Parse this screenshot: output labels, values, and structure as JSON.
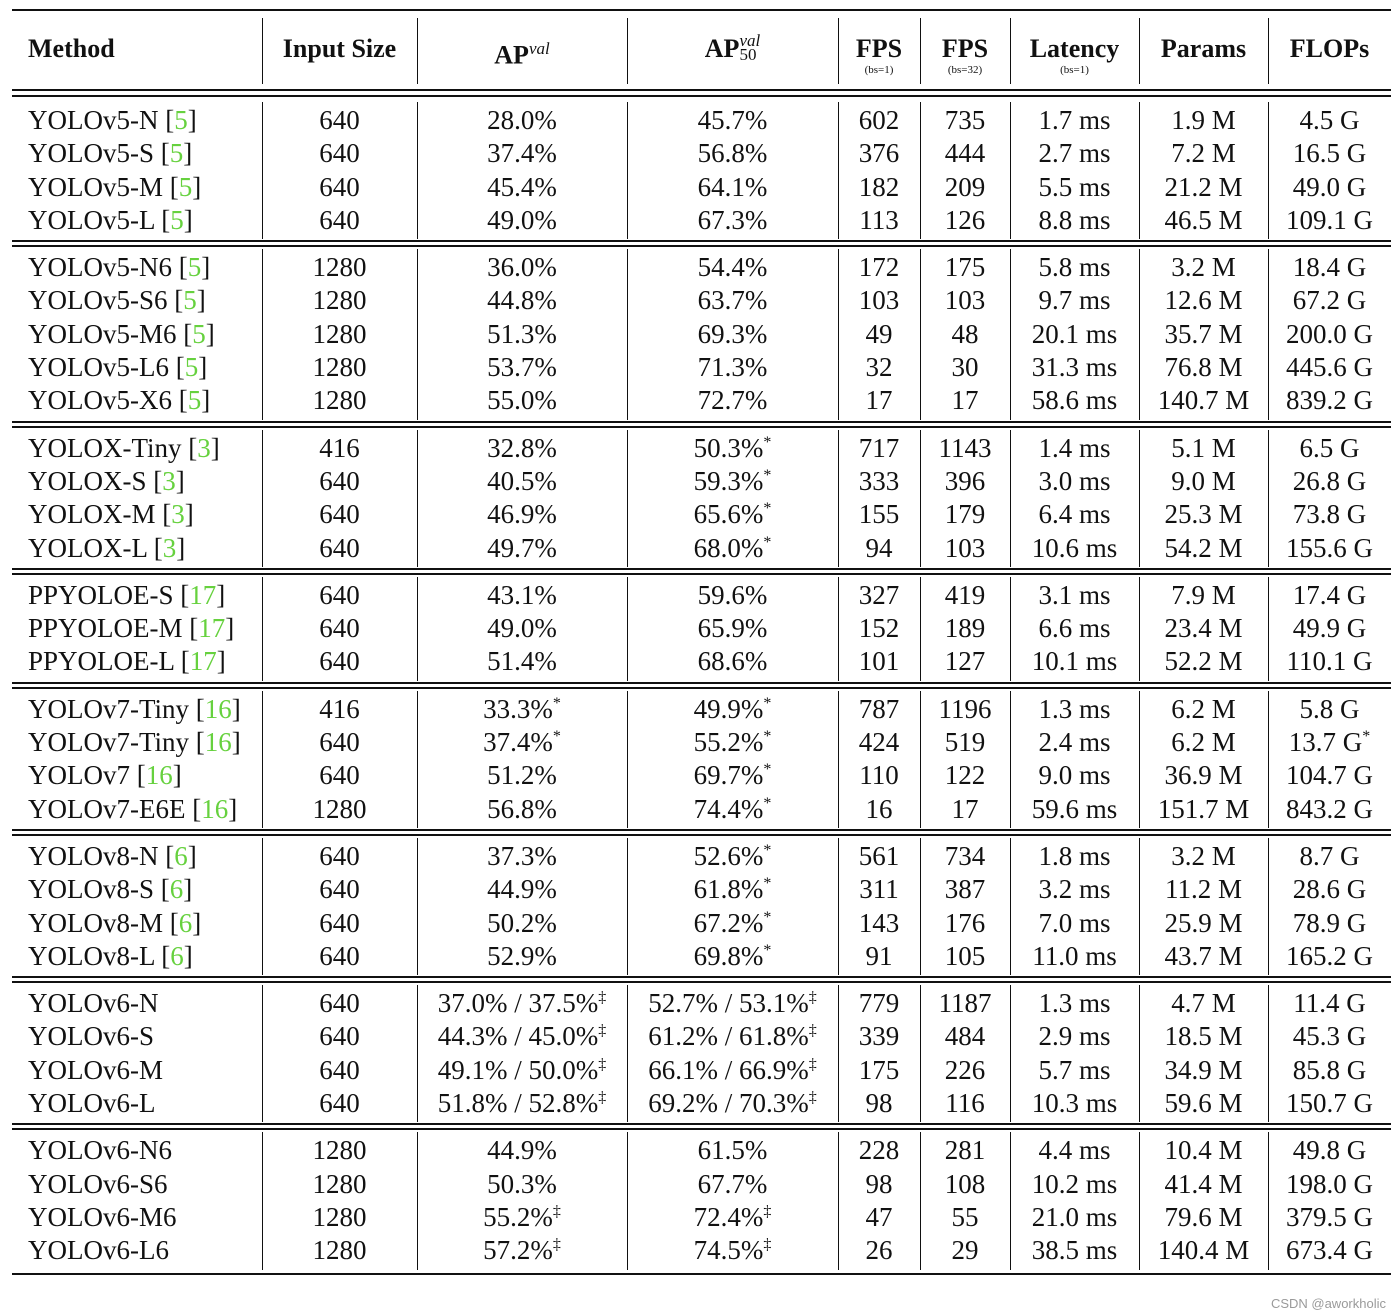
{
  "table": {
    "headers": [
      {
        "main": "Method",
        "sub": ""
      },
      {
        "main": "Input Size",
        "sub": ""
      },
      {
        "main": "AP",
        "sup": "val",
        "sub2": "",
        "sub": ""
      },
      {
        "main": "AP",
        "sup": "val",
        "sub2": "50",
        "sub": ""
      },
      {
        "main": "FPS",
        "sub": "(bs=1)"
      },
      {
        "main": "FPS",
        "sub": "(bs=32)"
      },
      {
        "main": "Latency",
        "sub": "(bs=1)"
      },
      {
        "main": "Params",
        "sub": ""
      },
      {
        "main": "FLOPs",
        "sub": ""
      }
    ],
    "groups": [
      [
        {
          "method": "YOLOv5-N",
          "ref": "5",
          "size": "640",
          "ap": "28.0%",
          "ap_mark": "",
          "ap50": "45.7%",
          "ap50_mark": "",
          "fps1": "602",
          "fps32": "735",
          "lat": "1.7 ms",
          "params": "1.9 M",
          "flops": "4.5 G",
          "flops_mark": ""
        },
        {
          "method": "YOLOv5-S",
          "ref": "5",
          "size": "640",
          "ap": "37.4%",
          "ap_mark": "",
          "ap50": "56.8%",
          "ap50_mark": "",
          "fps1": "376",
          "fps32": "444",
          "lat": "2.7 ms",
          "params": "7.2 M",
          "flops": "16.5 G",
          "flops_mark": ""
        },
        {
          "method": "YOLOv5-M",
          "ref": "5",
          "size": "640",
          "ap": "45.4%",
          "ap_mark": "",
          "ap50": "64.1%",
          "ap50_mark": "",
          "fps1": "182",
          "fps32": "209",
          "lat": "5.5 ms",
          "params": "21.2 M",
          "flops": "49.0 G",
          "flops_mark": ""
        },
        {
          "method": "YOLOv5-L",
          "ref": "5",
          "size": "640",
          "ap": "49.0%",
          "ap_mark": "",
          "ap50": "67.3%",
          "ap50_mark": "",
          "fps1": "113",
          "fps32": "126",
          "lat": "8.8 ms",
          "params": "46.5 M",
          "flops": "109.1 G",
          "flops_mark": ""
        }
      ],
      [
        {
          "method": "YOLOv5-N6",
          "ref": "5",
          "size": "1280",
          "ap": "36.0%",
          "ap_mark": "",
          "ap50": "54.4%",
          "ap50_mark": "",
          "fps1": "172",
          "fps32": "175",
          "lat": "5.8 ms",
          "params": "3.2 M",
          "flops": "18.4 G",
          "flops_mark": ""
        },
        {
          "method": "YOLOv5-S6",
          "ref": "5",
          "size": "1280",
          "ap": "44.8%",
          "ap_mark": "",
          "ap50": "63.7%",
          "ap50_mark": "",
          "fps1": "103",
          "fps32": "103",
          "lat": "9.7 ms",
          "params": "12.6 M",
          "flops": "67.2 G",
          "flops_mark": ""
        },
        {
          "method": "YOLOv5-M6",
          "ref": "5",
          "size": "1280",
          "ap": "51.3%",
          "ap_mark": "",
          "ap50": "69.3%",
          "ap50_mark": "",
          "fps1": "49",
          "fps32": "48",
          "lat": "20.1 ms",
          "params": "35.7 M",
          "flops": "200.0 G",
          "flops_mark": ""
        },
        {
          "method": "YOLOv5-L6",
          "ref": "5",
          "size": "1280",
          "ap": "53.7%",
          "ap_mark": "",
          "ap50": "71.3%",
          "ap50_mark": "",
          "fps1": "32",
          "fps32": "30",
          "lat": "31.3 ms",
          "params": "76.8 M",
          "flops": "445.6 G",
          "flops_mark": ""
        },
        {
          "method": "YOLOv5-X6",
          "ref": "5",
          "size": "1280",
          "ap": "55.0%",
          "ap_mark": "",
          "ap50": "72.7%",
          "ap50_mark": "",
          "fps1": "17",
          "fps32": "17",
          "lat": "58.6 ms",
          "params": "140.7 M",
          "flops": "839.2 G",
          "flops_mark": ""
        }
      ],
      [
        {
          "method": "YOLOX-Tiny",
          "ref": "3",
          "size": "416",
          "ap": "32.8%",
          "ap_mark": "",
          "ap50": "50.3%",
          "ap50_mark": "*",
          "fps1": "717",
          "fps32": "1143",
          "lat": "1.4 ms",
          "params": "5.1 M",
          "flops": "6.5 G",
          "flops_mark": ""
        },
        {
          "method": "YOLOX-S",
          "ref": "3",
          "size": "640",
          "ap": "40.5%",
          "ap_mark": "",
          "ap50": "59.3%",
          "ap50_mark": "*",
          "fps1": "333",
          "fps32": "396",
          "lat": "3.0 ms",
          "params": "9.0 M",
          "flops": "26.8 G",
          "flops_mark": ""
        },
        {
          "method": "YOLOX-M",
          "ref": "3",
          "size": "640",
          "ap": "46.9%",
          "ap_mark": "",
          "ap50": "65.6%",
          "ap50_mark": "*",
          "fps1": "155",
          "fps32": "179",
          "lat": "6.4 ms",
          "params": "25.3 M",
          "flops": "73.8 G",
          "flops_mark": ""
        },
        {
          "method": "YOLOX-L",
          "ref": "3",
          "size": "640",
          "ap": "49.7%",
          "ap_mark": "",
          "ap50": "68.0%",
          "ap50_mark": "*",
          "fps1": "94",
          "fps32": "103",
          "lat": "10.6 ms",
          "params": "54.2 M",
          "flops": "155.6 G",
          "flops_mark": ""
        }
      ],
      [
        {
          "method": "PPYOLOE-S",
          "ref": "17",
          "size": "640",
          "ap": "43.1%",
          "ap_mark": "",
          "ap50": "59.6%",
          "ap50_mark": "",
          "fps1": "327",
          "fps32": "419",
          "lat": "3.1 ms",
          "params": "7.9 M",
          "flops": "17.4 G",
          "flops_mark": ""
        },
        {
          "method": "PPYOLOE-M",
          "ref": "17",
          "size": "640",
          "ap": "49.0%",
          "ap_mark": "",
          "ap50": "65.9%",
          "ap50_mark": "",
          "fps1": "152",
          "fps32": "189",
          "lat": "6.6 ms",
          "params": "23.4 M",
          "flops": "49.9 G",
          "flops_mark": ""
        },
        {
          "method": "PPYOLOE-L",
          "ref": "17",
          "size": "640",
          "ap": "51.4%",
          "ap_mark": "",
          "ap50": "68.6%",
          "ap50_mark": "",
          "fps1": "101",
          "fps32": "127",
          "lat": "10.1 ms",
          "params": "52.2 M",
          "flops": "110.1 G",
          "flops_mark": ""
        }
      ],
      [
        {
          "method": "YOLOv7-Tiny",
          "ref": "16",
          "size": "416",
          "ap": "33.3%",
          "ap_mark": "*",
          "ap50": "49.9%",
          "ap50_mark": "*",
          "fps1": "787",
          "fps32": "1196",
          "lat": "1.3 ms",
          "params": "6.2 M",
          "flops": "5.8 G",
          "flops_mark": ""
        },
        {
          "method": "YOLOv7-Tiny",
          "ref": "16",
          "size": "640",
          "ap": "37.4%",
          "ap_mark": "*",
          "ap50": "55.2%",
          "ap50_mark": "*",
          "fps1": "424",
          "fps32": "519",
          "lat": "2.4 ms",
          "params": "6.2 M",
          "flops": "13.7 G",
          "flops_mark": "*"
        },
        {
          "method": "YOLOv7",
          "ref": "16",
          "size": "640",
          "ap": "51.2%",
          "ap_mark": "",
          "ap50": "69.7%",
          "ap50_mark": "*",
          "fps1": "110",
          "fps32": "122",
          "lat": "9.0 ms",
          "params": "36.9 M",
          "flops": "104.7 G",
          "flops_mark": ""
        },
        {
          "method": "YOLOv7-E6E",
          "ref": "16",
          "size": "1280",
          "ap": "56.8%",
          "ap_mark": "",
          "ap50": "74.4%",
          "ap50_mark": "*",
          "fps1": "16",
          "fps32": "17",
          "lat": "59.6 ms",
          "params": "151.7 M",
          "flops": "843.2 G",
          "flops_mark": ""
        }
      ],
      [
        {
          "method": "YOLOv8-N",
          "ref": "6",
          "size": "640",
          "ap": "37.3%",
          "ap_mark": "",
          "ap50": "52.6%",
          "ap50_mark": "*",
          "fps1": "561",
          "fps32": "734",
          "lat": "1.8 ms",
          "params": "3.2 M",
          "flops": "8.7 G",
          "flops_mark": ""
        },
        {
          "method": "YOLOv8-S",
          "ref": "6",
          "size": "640",
          "ap": "44.9%",
          "ap_mark": "",
          "ap50": "61.8%",
          "ap50_mark": "*",
          "fps1": "311",
          "fps32": "387",
          "lat": "3.2 ms",
          "params": "11.2 M",
          "flops": "28.6 G",
          "flops_mark": ""
        },
        {
          "method": "YOLOv8-M",
          "ref": "6",
          "size": "640",
          "ap": "50.2%",
          "ap_mark": "",
          "ap50": "67.2%",
          "ap50_mark": "*",
          "fps1": "143",
          "fps32": "176",
          "lat": "7.0 ms",
          "params": "25.9 M",
          "flops": "78.9 G",
          "flops_mark": ""
        },
        {
          "method": "YOLOv8-L",
          "ref": "6",
          "size": "640",
          "ap": "52.9%",
          "ap_mark": "",
          "ap50": "69.8%",
          "ap50_mark": "*",
          "fps1": "91",
          "fps32": "105",
          "lat": "11.0 ms",
          "params": "43.7 M",
          "flops": "165.2 G",
          "flops_mark": ""
        }
      ],
      [
        {
          "method": "YOLOv6-N",
          "ref": "",
          "size": "640",
          "ap": "37.0% / 37.5%",
          "ap_mark": "‡",
          "ap50": "52.7% / 53.1%",
          "ap50_mark": "‡",
          "fps1": "779",
          "fps32": "1187",
          "lat": "1.3 ms",
          "params": "4.7 M",
          "flops": "11.4 G",
          "flops_mark": ""
        },
        {
          "method": "YOLOv6-S",
          "ref": "",
          "size": "640",
          "ap": "44.3% / 45.0%",
          "ap_mark": "‡",
          "ap50": "61.2% / 61.8%",
          "ap50_mark": "‡",
          "fps1": "339",
          "fps32": "484",
          "lat": "2.9 ms",
          "params": "18.5 M",
          "flops": "45.3 G",
          "flops_mark": ""
        },
        {
          "method": "YOLOv6-M",
          "ref": "",
          "size": "640",
          "ap": "49.1% / 50.0%",
          "ap_mark": "‡",
          "ap50": "66.1% / 66.9%",
          "ap50_mark": "‡",
          "fps1": "175",
          "fps32": "226",
          "lat": "5.7 ms",
          "params": "34.9 M",
          "flops": "85.8 G",
          "flops_mark": ""
        },
        {
          "method": "YOLOv6-L",
          "ref": "",
          "size": "640",
          "ap": "51.8% / 52.8%",
          "ap_mark": "‡",
          "ap50": "69.2% / 70.3%",
          "ap50_mark": "‡",
          "fps1": "98",
          "fps32": "116",
          "lat": "10.3 ms",
          "params": "59.6 M",
          "flops": "150.7 G",
          "flops_mark": ""
        }
      ],
      [
        {
          "method": "YOLOv6-N6",
          "ref": "",
          "size": "1280",
          "ap": "44.9%",
          "ap_mark": "",
          "ap50": "61.5%",
          "ap50_mark": "",
          "fps1": "228",
          "fps32": "281",
          "lat": "4.4 ms",
          "params": "10.4 M",
          "flops": "49.8 G",
          "flops_mark": ""
        },
        {
          "method": "YOLOv6-S6",
          "ref": "",
          "size": "1280",
          "ap": "50.3%",
          "ap_mark": "",
          "ap50": "67.7%",
          "ap50_mark": "",
          "fps1": "98",
          "fps32": "108",
          "lat": "10.2 ms",
          "params": "41.4 M",
          "flops": "198.0 G",
          "flops_mark": ""
        },
        {
          "method": "YOLOv6-M6",
          "ref": "",
          "size": "1280",
          "ap": "55.2%",
          "ap_mark": "‡",
          "ap50": "72.4%",
          "ap50_mark": "‡",
          "fps1": "47",
          "fps32": "55",
          "lat": "21.0 ms",
          "params": "79.6 M",
          "flops": "379.5 G",
          "flops_mark": ""
        },
        {
          "method": "YOLOv6-L6",
          "ref": "",
          "size": "1280",
          "ap": "57.2%",
          "ap_mark": "‡",
          "ap50": "74.5%",
          "ap50_mark": "‡",
          "fps1": "26",
          "fps32": "29",
          "lat": "38.5 ms",
          "params": "140.4 M",
          "flops": "673.4 G",
          "flops_mark": ""
        }
      ]
    ]
  },
  "watermark": "CSDN @aworkholic"
}
